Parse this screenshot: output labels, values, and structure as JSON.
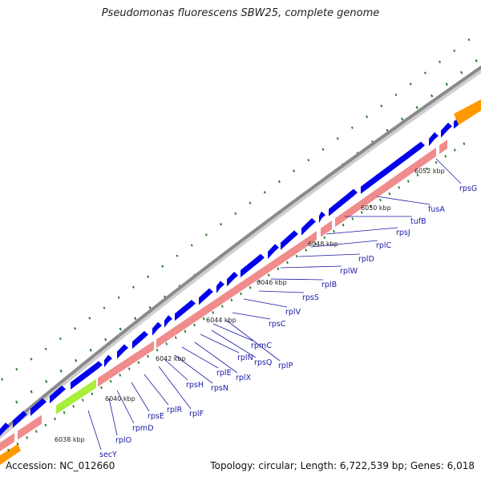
{
  "title": "Pseudomonas fluorescens SBW25, complete genome",
  "footer": {
    "accession": "Accession: NC_012660",
    "summary": "Topology: circular; Length: 6,722,539 bp; Genes: 6,018"
  },
  "colors": {
    "backbone": "#8a8a8a",
    "gene_blue": "#0000ee",
    "gene_pink": "#f08c8c",
    "gene_green": "#a8ee3a",
    "gene_orange": "#ff9900",
    "tick_dark": "#2a7a2a",
    "label_blue": "#1a1aa6",
    "kbp_text": "#222222"
  },
  "kbp_ticks": [
    "6038 kbp",
    "6040 kbp",
    "6042 kbp",
    "6044 kbp",
    "6046 kbp",
    "6048 kbp",
    "6050 kbp",
    "6052 kbp"
  ],
  "genes": [
    {
      "name": "secY"
    },
    {
      "name": "rplO"
    },
    {
      "name": "rpmD"
    },
    {
      "name": "rpsE"
    },
    {
      "name": "rplR"
    },
    {
      "name": "rplF"
    },
    {
      "name": "rpsH"
    },
    {
      "name": "rpsN"
    },
    {
      "name": "rplE"
    },
    {
      "name": "rplX"
    },
    {
      "name": "rplN"
    },
    {
      "name": "rpsQ"
    },
    {
      "name": "rpmC"
    },
    {
      "name": "rplP"
    },
    {
      "name": "rpsC"
    },
    {
      "name": "rplV"
    },
    {
      "name": "rpsS"
    },
    {
      "name": "rplB"
    },
    {
      "name": "rplW"
    },
    {
      "name": "rplD"
    },
    {
      "name": "rplC"
    },
    {
      "name": "rpsJ"
    },
    {
      "name": "tufB"
    },
    {
      "name": "fusA"
    },
    {
      "name": "rpsG"
    }
  ]
}
